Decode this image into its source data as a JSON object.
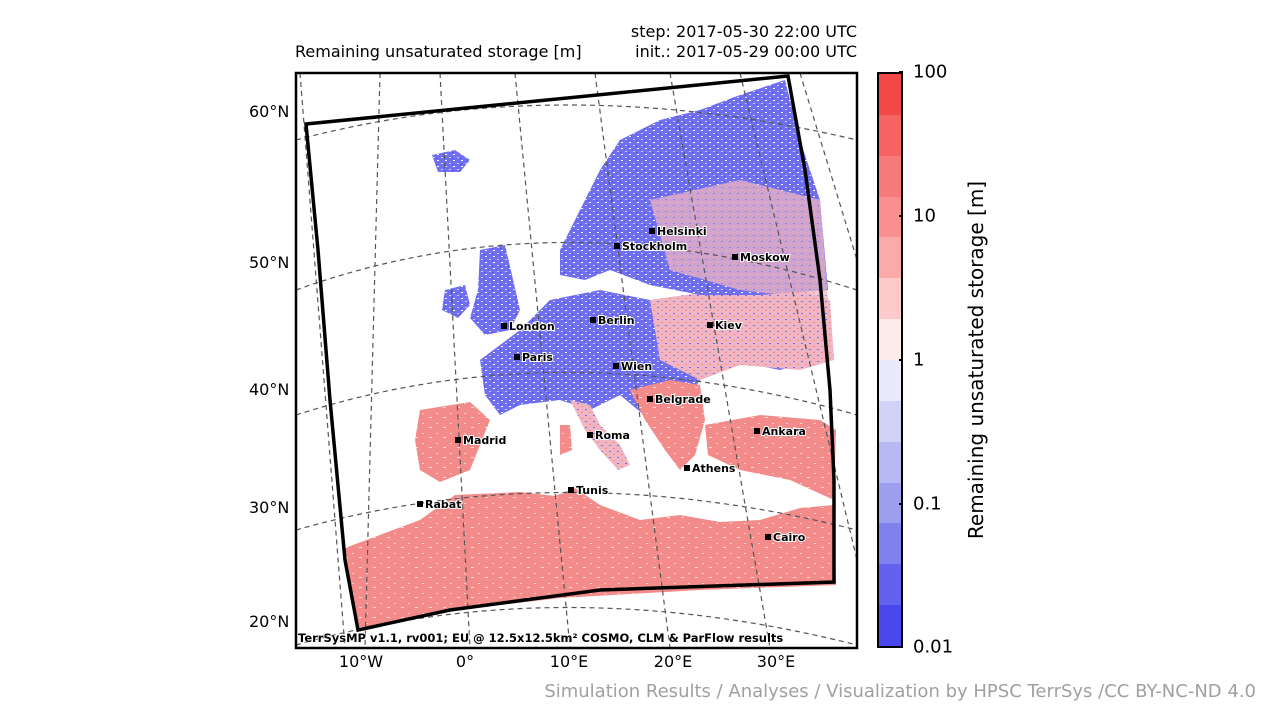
{
  "header": {
    "title": "Remaining unsaturated storage [m]",
    "step": "step: 2017-05-30 22:00 UTC",
    "init": "init.: 2017-05-29 00:00 UTC"
  },
  "map": {
    "lat_labels": [
      "60°N",
      "50°N",
      "40°N",
      "30°N",
      "20°N"
    ],
    "lon_labels": [
      "10°W",
      "0°",
      "10°E",
      "20°E",
      "30°E"
    ],
    "cities": [
      {
        "name": "Helsinki"
      },
      {
        "name": "Stockholm"
      },
      {
        "name": "Moskow"
      },
      {
        "name": "London"
      },
      {
        "name": "Berlin"
      },
      {
        "name": "Kiev"
      },
      {
        "name": "Paris"
      },
      {
        "name": "Wien"
      },
      {
        "name": "Belgrade"
      },
      {
        "name": "Madrid"
      },
      {
        "name": "Roma"
      },
      {
        "name": "Ankara"
      },
      {
        "name": "Athens"
      },
      {
        "name": "Tunis"
      },
      {
        "name": "Rabat"
      },
      {
        "name": "Cairo"
      }
    ],
    "credit": "TerrSysMP v1.1, rv001; EU @ 12.5x12.5km² COSMO, CLM & ParFlow results",
    "colors": {
      "land_wet": "#6b6bef",
      "land_dry": "#f48b8b",
      "land_mid": "#f2c4c4",
      "water": "#ffffff"
    }
  },
  "colorbar": {
    "label": "Remaining unsaturated storage [m]",
    "tick_labels": [
      "100",
      "10",
      "1",
      "0.1",
      "0.01"
    ],
    "scale": "log",
    "range": [
      0.01,
      100
    ],
    "colors": [
      "#f24848",
      "#f56363",
      "#f77a7a",
      "#f99090",
      "#fbaaaa",
      "#fccaca",
      "#fdeaea",
      "#eaeafb",
      "#d2d2f7",
      "#b8b8f4",
      "#9e9ef1",
      "#8080ef",
      "#6262ee",
      "#4848ee"
    ]
  },
  "footer": {
    "text": "Simulation Results / Analyses / Visualization by HPSC TerrSys /CC BY-NC-ND 4.0"
  }
}
